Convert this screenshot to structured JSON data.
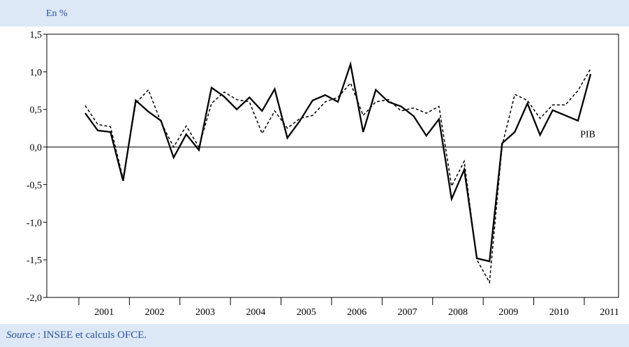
{
  "unit_label": "En %",
  "source": {
    "label": "Source",
    "separator": " : ",
    "text": "INSEE et calculs OFCE."
  },
  "colors": {
    "page_background": "#dde8f7",
    "plot_background": "#ffffff",
    "text_accent": "#2a4fa0",
    "line": "#000000"
  },
  "chart_data": {
    "type": "line",
    "title": "",
    "xlabel": "",
    "ylabel": "",
    "ylim": [
      -2.0,
      1.5
    ],
    "yticks": [
      1.5,
      1.0,
      0.5,
      0.0,
      -0.5,
      -1.0,
      -1.5,
      -2.0
    ],
    "ytick_labels": [
      "1,5",
      "1,0",
      "0,5",
      "0,0",
      "-0,5",
      "-1,0",
      "-1,5",
      "-2,0"
    ],
    "x_year_labels": [
      "2001",
      "2002",
      "2003",
      "2004",
      "2005",
      "2006",
      "2007",
      "2008",
      "2009",
      "2010",
      "2011"
    ],
    "grid": false,
    "series": [
      {
        "name": "PIB",
        "style": "solid",
        "values": [
          0.45,
          0.22,
          0.2,
          -0.45,
          0.62,
          0.47,
          0.35,
          -0.14,
          0.17,
          -0.04,
          0.79,
          0.67,
          0.5,
          0.66,
          0.48,
          0.77,
          0.12,
          0.35,
          0.62,
          0.69,
          0.6,
          1.1,
          0.2,
          0.76,
          0.6,
          0.54,
          0.41,
          0.15,
          0.37,
          -0.69,
          -0.3,
          -1.48,
          -1.52,
          0.05,
          0.2,
          0.58,
          0.16,
          0.49,
          0.42,
          0.35,
          0.97
        ]
      },
      {
        "name": "",
        "style": "dashed",
        "values": [
          0.55,
          0.3,
          0.27,
          -0.42,
          0.58,
          0.76,
          0.33,
          0.0,
          0.28,
          0.0,
          0.58,
          0.73,
          0.63,
          0.6,
          0.18,
          0.48,
          0.25,
          0.38,
          0.42,
          0.6,
          0.66,
          0.85,
          0.42,
          0.6,
          0.63,
          0.48,
          0.52,
          0.45,
          0.54,
          -0.52,
          -0.19,
          -1.5,
          -1.8,
          0.02,
          0.7,
          0.62,
          0.38,
          0.56,
          0.56,
          0.75,
          1.04
        ]
      }
    ],
    "annotations": [
      {
        "text": "PIB",
        "series": "PIB"
      }
    ]
  }
}
